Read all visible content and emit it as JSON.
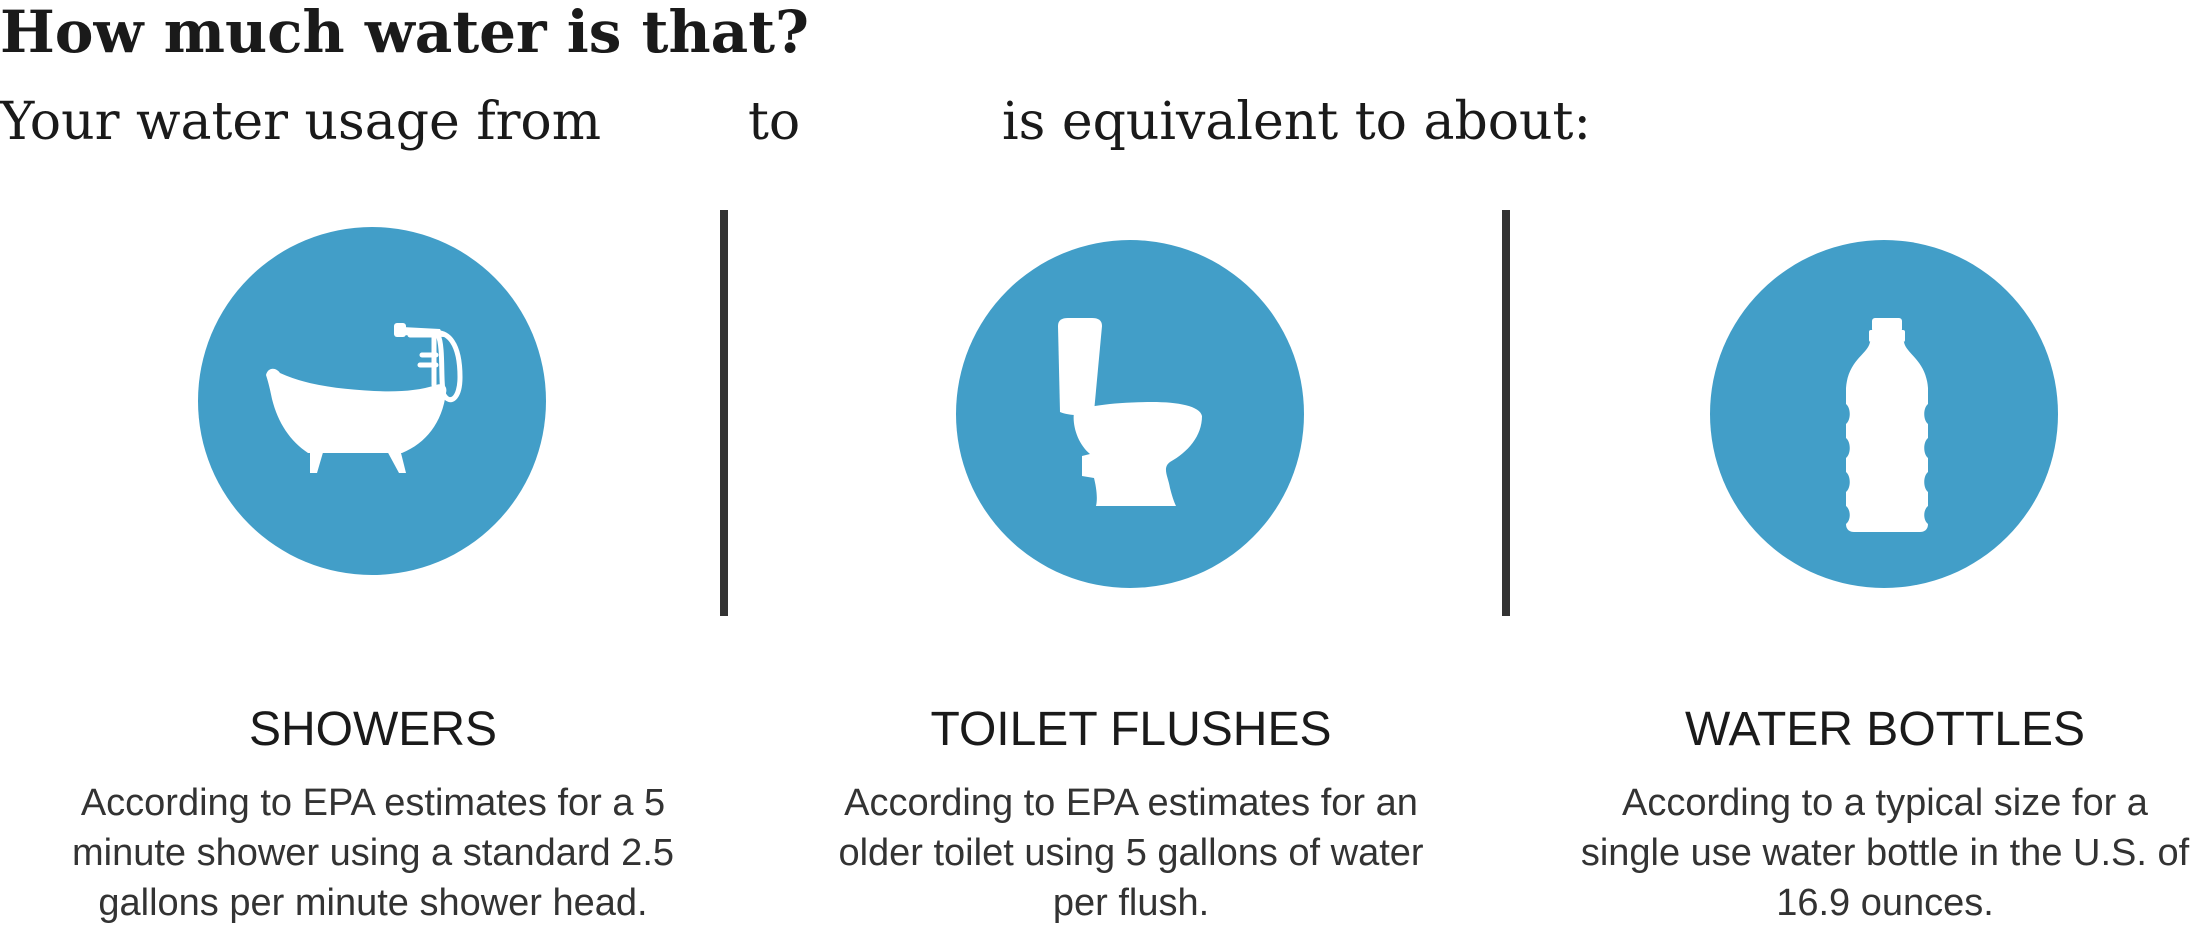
{
  "heading": {
    "title": "How much water is that?",
    "subtitle_part1": "Your water usage from",
    "subtitle_part2": "to",
    "subtitle_part3": "is equivalent to about:"
  },
  "colors": {
    "circle": "#429ec8",
    "divider": "#333333",
    "icon": "#ffffff"
  },
  "columns": [
    {
      "icon": "bathtub-icon",
      "title": "SHOWERS",
      "description_lines": [
        "According to EPA estimates for a 5",
        "minute shower using a standard 2.5",
        "gallons per minute shower head."
      ]
    },
    {
      "icon": "toilet-icon",
      "title": "TOILET FLUSHES",
      "description_lines": [
        "According to EPA estimates for an",
        "older toilet using 5 gallons of water",
        "per flush."
      ]
    },
    {
      "icon": "water-bottle-icon",
      "title": "WATER BOTTLES",
      "description_lines": [
        "According to a typical size for a",
        "single use water bottle in the U.S. of",
        "16.9 ounces."
      ]
    }
  ]
}
